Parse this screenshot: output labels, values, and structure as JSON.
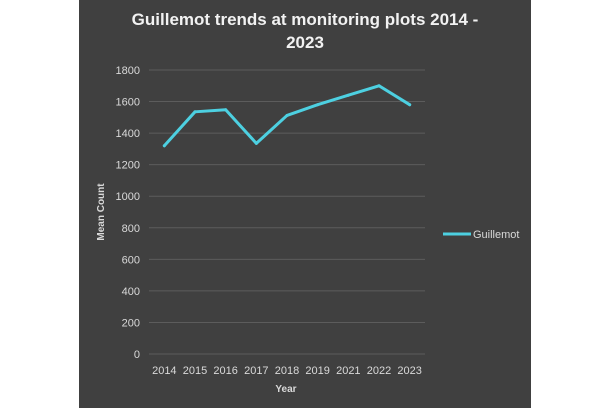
{
  "chart_data": {
    "type": "line",
    "title_lines": [
      "Guillemot trends at monitoring plots 2014 -",
      "2023"
    ],
    "xlabel": "Year",
    "ylabel": "Mean Count",
    "ylim": [
      0,
      1800
    ],
    "yticks": [
      0,
      200,
      400,
      600,
      800,
      1000,
      1200,
      1400,
      1600,
      1800
    ],
    "x": [
      "2014",
      "2015",
      "2016",
      "2017",
      "2018",
      "2019",
      "2021",
      "2022",
      "2023"
    ],
    "series": [
      {
        "name": "Guillemot",
        "color": "#4dd0e1",
        "values": [
          1320,
          1535,
          1548,
          1335,
          1512,
          1580,
          1640,
          1700,
          1580
        ]
      }
    ],
    "grid": true,
    "legend": "right",
    "background": "#404040"
  }
}
